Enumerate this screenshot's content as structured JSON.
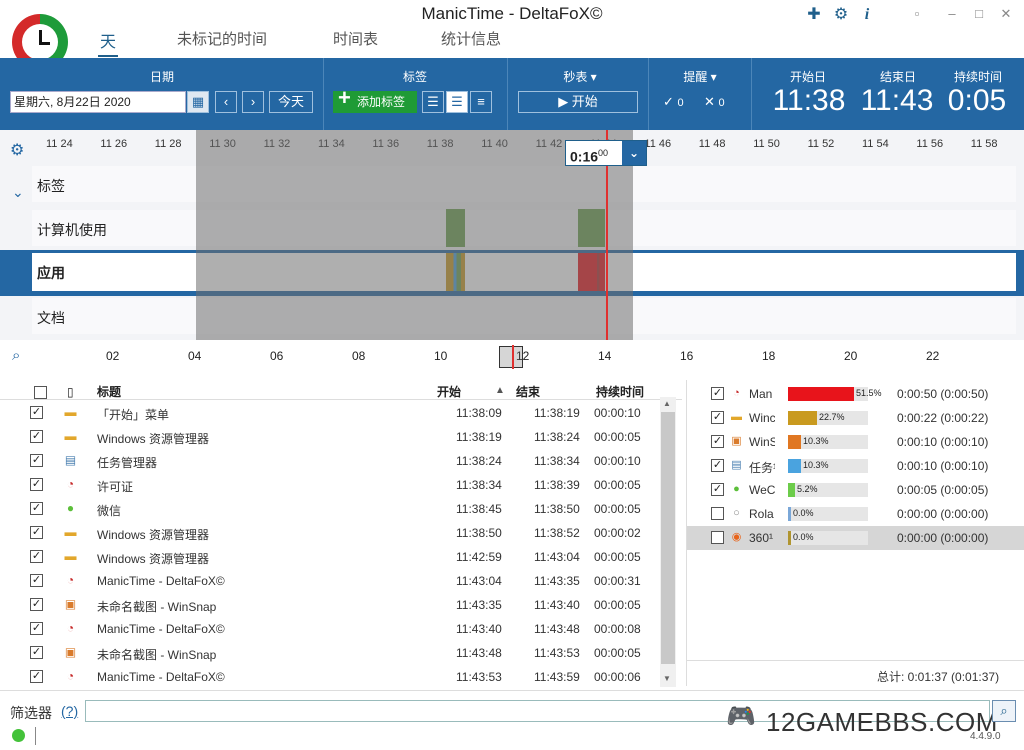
{
  "window": {
    "title": "ManicTime - DeltaFoX©"
  },
  "tabs": [
    "天",
    "未标记的时间",
    "时间表",
    "统计信息"
  ],
  "toolbar": {
    "date": {
      "header": "日期",
      "value": "星期六, 8月22日 2020",
      "today": "今天"
    },
    "tags": {
      "header": "标签",
      "add": "添加标签"
    },
    "stopwatch": {
      "header": "秒表",
      "start": "开始"
    },
    "reminders": {
      "header": "提醒",
      "done": "0",
      "dismissed": "0"
    },
    "range": {
      "start_header": "开始日",
      "end_header": "结束日",
      "duration_header": "持续时间",
      "start": "11:38",
      "end": "11:43",
      "duration": "0:05"
    }
  },
  "timeline": {
    "ticks": [
      "11 24",
      "11 26",
      "11 28",
      "11 30",
      "11 32",
      "11 34",
      "11 36",
      "11 38",
      "11 40",
      "11 42",
      "11 44",
      "11 46",
      "11 48",
      "11 50",
      "11 52",
      "11 54",
      "11 56",
      "11 58"
    ],
    "rows": [
      "标签",
      "计算机使用",
      "应用",
      "文档"
    ],
    "popup_time": "0:16",
    "popup_seconds": "00"
  },
  "overview": {
    "labels": [
      "02",
      "04",
      "06",
      "08",
      "10",
      "12",
      "14",
      "16",
      "18",
      "20",
      "22"
    ]
  },
  "list": {
    "headers": {
      "title": "标题",
      "start": "开始",
      "end": "结束",
      "duration": "持续时间"
    },
    "rows": [
      {
        "title": "「开始」菜单",
        "start": "11:38:09",
        "end": "11:38:19",
        "duration": "00:00:10",
        "icon": "folder-icon"
      },
      {
        "title": "Windows 资源管理器",
        "start": "11:38:19",
        "end": "11:38:24",
        "duration": "00:00:05",
        "icon": "folder-icon"
      },
      {
        "title": "任务管理器",
        "start": "11:38:24",
        "end": "11:38:34",
        "duration": "00:00:10",
        "icon": "task-manager-icon"
      },
      {
        "title": "许可证",
        "start": "11:38:34",
        "end": "11:38:39",
        "duration": "00:00:05",
        "icon": "manictime-icon"
      },
      {
        "title": "微信",
        "start": "11:38:45",
        "end": "11:38:50",
        "duration": "00:00:05",
        "icon": "wechat-icon"
      },
      {
        "title": "Windows 资源管理器",
        "start": "11:38:50",
        "end": "11:38:52",
        "duration": "00:00:02",
        "icon": "folder-icon"
      },
      {
        "title": "Windows 资源管理器",
        "start": "11:42:59",
        "end": "11:43:04",
        "duration": "00:00:05",
        "icon": "folder-icon"
      },
      {
        "title": "ManicTime - DeltaFoX©",
        "start": "11:43:04",
        "end": "11:43:35",
        "duration": "00:00:31",
        "icon": "manictime-icon"
      },
      {
        "title": "未命名截图 - WinSnap",
        "start": "11:43:35",
        "end": "11:43:40",
        "duration": "00:00:05",
        "icon": "winsnap-icon"
      },
      {
        "title": "ManicTime - DeltaFoX©",
        "start": "11:43:40",
        "end": "11:43:48",
        "duration": "00:00:08",
        "icon": "manictime-icon"
      },
      {
        "title": "未命名截图 - WinSnap",
        "start": "11:43:48",
        "end": "11:43:53",
        "duration": "00:00:05",
        "icon": "winsnap-icon"
      },
      {
        "title": "ManicTime - DeltaFoX©",
        "start": "11:43:53",
        "end": "11:43:59",
        "duration": "00:00:06",
        "icon": "manictime-icon"
      }
    ]
  },
  "summary": {
    "rows": [
      {
        "name": "Man",
        "pct": "51.5%",
        "value": 0.515,
        "time": "0:00:50 (0:00:50)",
        "color": "#e8141b",
        "checked": true,
        "icon": "manictime-icon"
      },
      {
        "name": "Winc",
        "pct": "22.7%",
        "value": 0.227,
        "time": "0:00:22 (0:00:22)",
        "color": "#c99a1f",
        "checked": true,
        "icon": "folder-icon"
      },
      {
        "name": "WinS",
        "pct": "10.3%",
        "value": 0.103,
        "time": "0:00:10 (0:00:10)",
        "color": "#e07722",
        "checked": true,
        "icon": "winsnap-icon"
      },
      {
        "name": "任务¹",
        "pct": "10.3%",
        "value": 0.103,
        "time": "0:00:10 (0:00:10)",
        "color": "#4aa3df",
        "checked": true,
        "icon": "task-manager-icon"
      },
      {
        "name": "WeC",
        "pct": "5.2%",
        "value": 0.052,
        "time": "0:00:05 (0:00:05)",
        "color": "#6ccc4a",
        "checked": true,
        "icon": "wechat-icon"
      },
      {
        "name": "Rola",
        "pct": "0.0%",
        "value": 0.0,
        "time": "0:00:00 (0:00:00)",
        "color": "#7aa7d8",
        "checked": false,
        "icon": "circle-icon"
      },
      {
        "name": "360¹",
        "pct": "0.0%",
        "value": 0.0,
        "time": "0:00:00 (0:00:00)",
        "color": "#b09530",
        "checked": false,
        "icon": "browser-360-icon"
      }
    ],
    "total": "总计: 0:01:37 (0:01:37)"
  },
  "filter": {
    "label": "筛选器",
    "help": "(?)"
  },
  "watermark": "12GAMEBBS.COM",
  "version": "4.4.9.0"
}
